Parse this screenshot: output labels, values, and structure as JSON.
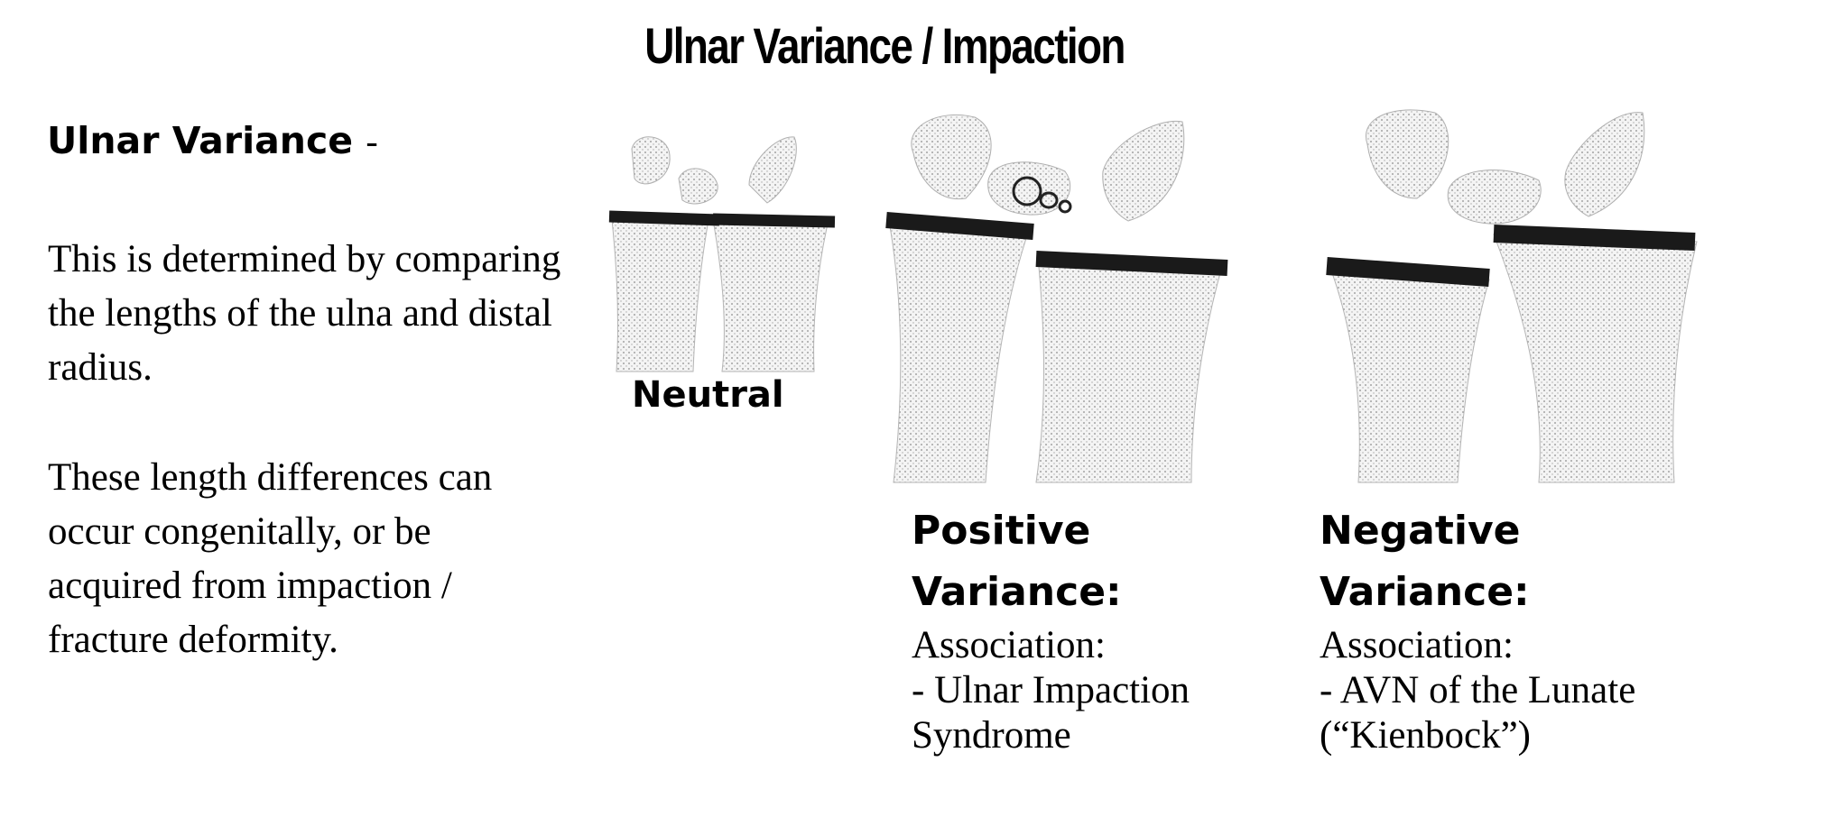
{
  "title": "Ulnar Variance / Impaction",
  "left_panel": {
    "heading": "Ulnar Variance",
    "heading_suffix": "-",
    "paragraph_1": "This is determined by comparing the lengths of the ulna and distal radius.",
    "paragraph_2": "These length differences can occur congenitally, or be acquired from impaction / fracture deformity."
  },
  "diagrams": {
    "neutral": {
      "label": "Neutral"
    },
    "positive": {
      "label_line1": "Positive",
      "label_line2": "Variance:",
      "association_label": "Association:",
      "association_line1": "- Ulnar Impaction",
      "association_line2": "Syndrome"
    },
    "negative": {
      "label_line1": "Negative",
      "label_line2": "Variance:",
      "association_label": "Association:",
      "association_line1": "- AVN of the Lunate",
      "association_line2": "(“Kienbock”)"
    }
  },
  "colors": {
    "text": "#000000",
    "bone_fill": "#e6e6e6",
    "bone_stroke": "#9a9a9a",
    "line_bar": "#1a1a1a"
  }
}
